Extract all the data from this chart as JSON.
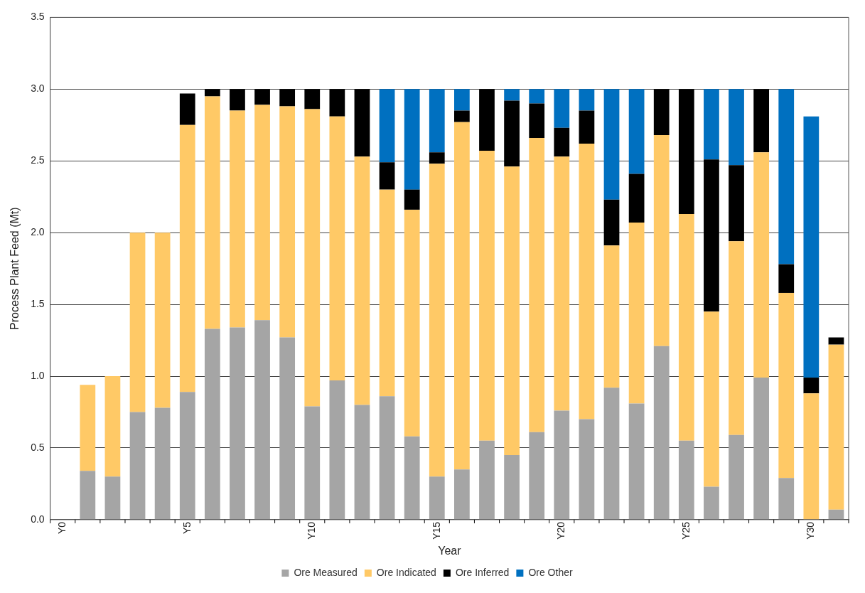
{
  "chart_data": {
    "type": "bar",
    "stacked": true,
    "xlabel": "Year",
    "ylabel": "Process Plant Feed (Mt)",
    "categories": [
      "Y0",
      null,
      null,
      null,
      null,
      "Y5",
      null,
      null,
      null,
      null,
      "Y10",
      null,
      null,
      null,
      null,
      "Y15",
      null,
      null,
      null,
      null,
      "Y20",
      null,
      null,
      null,
      null,
      "Y25",
      null,
      null,
      null,
      null,
      "Y30",
      null
    ],
    "series": [
      {
        "name": "Ore Measured",
        "color": "#a5a5a5",
        "values": [
          null,
          0.34,
          0.3,
          0.75,
          0.78,
          0.89,
          1.33,
          1.34,
          1.39,
          1.27,
          0.79,
          0.97,
          0.8,
          0.86,
          0.58,
          0.3,
          0.35,
          0.55,
          0.45,
          0.61,
          0.76,
          0.7,
          0.92,
          0.81,
          1.21,
          0.55,
          0.23,
          0.59,
          0.99,
          0.29,
          0,
          0.07
        ]
      },
      {
        "name": "Ore Indicated",
        "color": "#ffc966",
        "values": [
          null,
          0.6,
          0.7,
          1.25,
          1.22,
          1.86,
          1.62,
          1.51,
          1.5,
          1.61,
          2.07,
          1.84,
          1.73,
          1.44,
          1.58,
          2.18,
          2.42,
          2.02,
          2.01,
          2.05,
          1.77,
          1.92,
          0.99,
          1.26,
          1.47,
          1.58,
          1.22,
          1.35,
          1.57,
          1.29,
          0.88,
          1.15
        ]
      },
      {
        "name": "Ore Inferred",
        "color": "#000000",
        "values": [
          null,
          null,
          null,
          null,
          null,
          0.22,
          0.05,
          0.15,
          0.11,
          0.12,
          0.14,
          0.19,
          0.47,
          0.19,
          0.14,
          0.08,
          0.08,
          0.43,
          0.46,
          0.24,
          0.2,
          0.23,
          0.32,
          0.34,
          0.32,
          0.87,
          1.06,
          0.53,
          0.44,
          0.2,
          0.11,
          0.05
        ]
      },
      {
        "name": "Ore Other",
        "color": "#0070c0",
        "values": [
          null,
          null,
          null,
          null,
          null,
          null,
          null,
          null,
          null,
          null,
          null,
          null,
          null,
          0.51,
          0.7,
          0.44,
          0.15,
          null,
          0.08,
          0.1,
          0.27,
          0.15,
          0.77,
          0.59,
          null,
          null,
          0.49,
          0.53,
          null,
          1.22,
          1.82,
          null
        ]
      }
    ],
    "ylim": [
      0,
      3.5
    ],
    "yticks": [
      {
        "value": 0,
        "label": "0.0"
      },
      {
        "value": 0.5,
        "label": "0.5"
      },
      {
        "value": 1,
        "label": "1.0"
      },
      {
        "value": 1.5,
        "label": "1.5"
      },
      {
        "value": 2,
        "label": "2.0"
      },
      {
        "value": 2.5,
        "label": "2.5"
      },
      {
        "value": 3,
        "label": "3.0"
      },
      {
        "value": 3.5,
        "label": "3.5"
      }
    ],
    "grid": "y",
    "legend": "bottom"
  }
}
